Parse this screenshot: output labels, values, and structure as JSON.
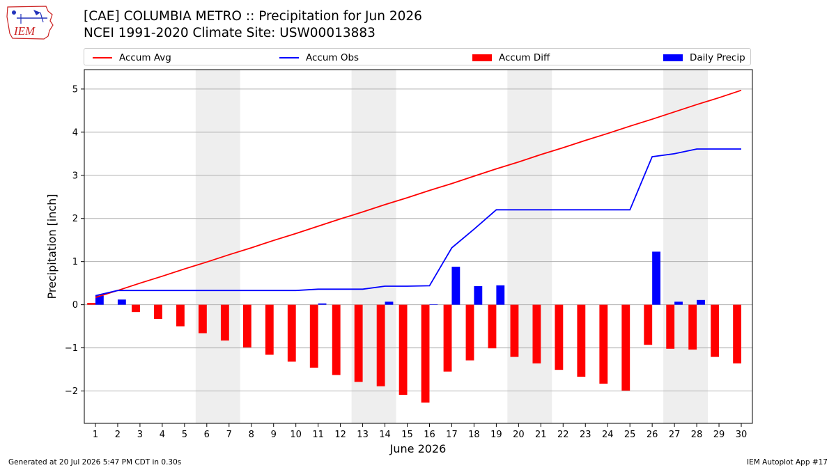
{
  "logo": {
    "text": "IEM",
    "icon": "iem-iowa-map-logo"
  },
  "header": {
    "title": "[CAE] COLUMBIA METRO :: Precipitation for Jun 2026",
    "subtitle": "NCEI 1991-2020 Climate Site: USW00013883"
  },
  "legend": {
    "items": [
      {
        "label": "Accum Avg",
        "kind": "line",
        "color": "#ff0000"
      },
      {
        "label": "Accum Obs",
        "kind": "line",
        "color": "#0000ff"
      },
      {
        "label": "Accum Diff",
        "kind": "bar",
        "color": "#ff0000"
      },
      {
        "label": "Daily Precip",
        "kind": "bar",
        "color": "#0000ff"
      }
    ]
  },
  "footer": {
    "generated": "Generated at 20 Jul 2026 5:47 PM CDT in 0.30s",
    "app": "IEM Autoplot App #17"
  },
  "chart_data": {
    "type": "bar",
    "title": "[CAE] COLUMBIA METRO :: Precipitation for Jun 2026",
    "xlabel": "June 2026",
    "ylabel": "Precipitation [inch]",
    "x": [
      1,
      2,
      3,
      4,
      5,
      6,
      7,
      8,
      9,
      10,
      11,
      12,
      13,
      14,
      15,
      16,
      17,
      18,
      19,
      20,
      21,
      22,
      23,
      24,
      25,
      26,
      27,
      28,
      29,
      30
    ],
    "xlim": [
      0.5,
      30.5
    ],
    "ylim": [
      -2.75,
      5.45
    ],
    "yticks": [
      -2,
      -1,
      0,
      1,
      2,
      3,
      4,
      5
    ],
    "grid": "horizontal",
    "legend_position": "top",
    "weekend_shading": [
      [
        6,
        7
      ],
      [
        13,
        14
      ],
      [
        20,
        21
      ],
      [
        27,
        28
      ]
    ],
    "series": [
      {
        "name": "Accum Avg",
        "type": "line",
        "color": "#ff0000",
        "values": [
          0.17,
          0.33,
          0.5,
          0.66,
          0.83,
          0.99,
          1.16,
          1.32,
          1.49,
          1.65,
          1.82,
          1.99,
          2.15,
          2.32,
          2.48,
          2.65,
          2.81,
          2.98,
          3.15,
          3.31,
          3.48,
          3.64,
          3.81,
          3.97,
          4.14,
          4.3,
          4.47,
          4.64,
          4.8,
          4.97
        ]
      },
      {
        "name": "Accum Obs",
        "type": "line",
        "color": "#0000ff",
        "values": [
          0.21,
          0.33,
          0.33,
          0.33,
          0.33,
          0.33,
          0.33,
          0.33,
          0.33,
          0.33,
          0.36,
          0.36,
          0.36,
          0.43,
          0.43,
          0.44,
          1.32,
          1.75,
          2.2,
          2.2,
          2.2,
          2.2,
          2.2,
          2.2,
          2.2,
          3.43,
          3.5,
          3.61,
          3.61,
          3.61
        ]
      },
      {
        "name": "Accum Diff",
        "type": "bar",
        "color": "#ff0000",
        "values": [
          0.04,
          0.0,
          -0.17,
          -0.33,
          -0.5,
          -0.66,
          -0.83,
          -0.99,
          -1.16,
          -1.32,
          -1.46,
          -1.63,
          -1.79,
          -1.89,
          -2.09,
          -2.27,
          -1.55,
          -1.29,
          -1.01,
          -1.21,
          -1.36,
          -1.51,
          -1.67,
          -1.83,
          -1.99,
          -0.93,
          -1.02,
          -1.04,
          -1.21,
          -1.36
        ]
      },
      {
        "name": "Daily Precip",
        "type": "bar",
        "color": "#0000ff",
        "values": [
          0.21,
          0.12,
          0.0,
          0.0,
          0.0,
          0.0,
          0.0,
          0.0,
          0.0,
          0.0,
          0.03,
          0.0,
          0.0,
          0.07,
          0.0,
          0.01,
          0.88,
          0.43,
          0.45,
          0.0,
          0.0,
          0.0,
          0.0,
          0.0,
          0.0,
          1.23,
          0.07,
          0.11,
          0.0,
          0.0
        ]
      }
    ]
  }
}
